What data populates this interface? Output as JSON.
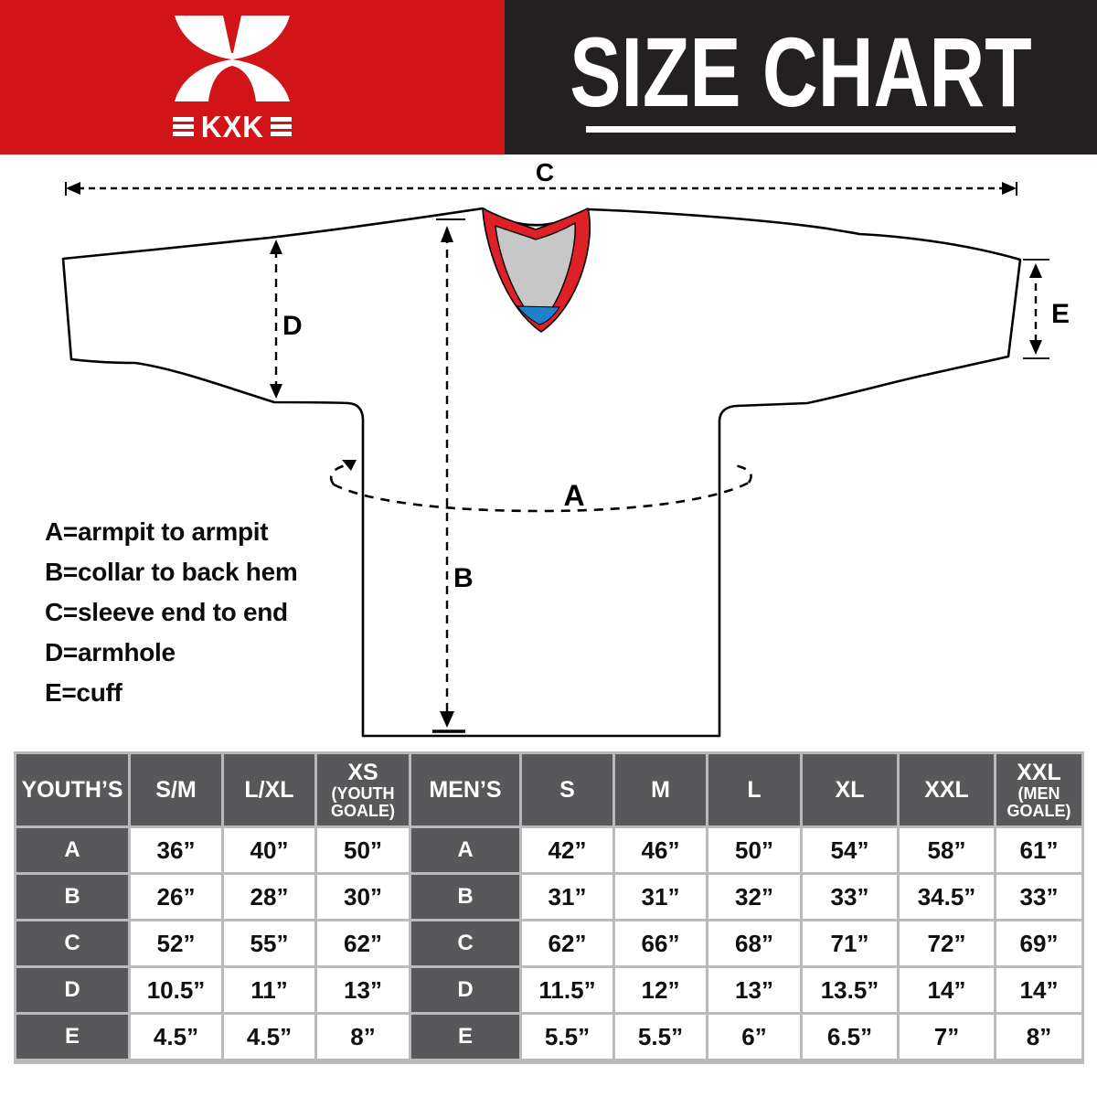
{
  "header": {
    "title": "SIZE CHART",
    "banner_red_color": "#d01418",
    "banner_black_color": "#242021"
  },
  "logo": {
    "text": "KXK",
    "emblem_icon": "kxk-butterfly-x-emblem",
    "color": "#ffffff"
  },
  "diagram": {
    "labels": {
      "A": "A",
      "B": "B",
      "C": "C",
      "D": "D",
      "E": "E"
    },
    "legend": [
      "A=armpit to armpit",
      "B=collar to back hem",
      "C=sleeve end to end",
      "D=armhole",
      "E=cuff"
    ],
    "colors": {
      "outline": "#000000",
      "collar_red": "#dd2127",
      "collar_gray": "#c7c7c7",
      "collar_blue": "#1e80c8"
    }
  },
  "size_table": {
    "grid_color": "#b9babc",
    "header_cell_color": "#58585a",
    "youth": {
      "label": "YOUTH’S",
      "columns": [
        {
          "main": "S/M",
          "sub": ""
        },
        {
          "main": "L/XL",
          "sub": ""
        },
        {
          "main": "XS",
          "sub": "(YOUTH GOALE)"
        }
      ]
    },
    "men": {
      "label": "MEN’S",
      "columns": [
        {
          "main": "S",
          "sub": ""
        },
        {
          "main": "M",
          "sub": ""
        },
        {
          "main": "L",
          "sub": ""
        },
        {
          "main": "XL",
          "sub": ""
        },
        {
          "main": "XXL",
          "sub": ""
        },
        {
          "main": "XXL",
          "sub": "(MEN GOALE)"
        }
      ]
    },
    "rows": [
      {
        "label": "A",
        "youth": [
          "36”",
          "40”",
          "50”"
        ],
        "men": [
          "42”",
          "46”",
          "50”",
          "54”",
          "58”",
          "61”"
        ]
      },
      {
        "label": "B",
        "youth": [
          "26”",
          "28”",
          "30”"
        ],
        "men": [
          "31”",
          "31”",
          "32”",
          "33”",
          "34.5”",
          "33”"
        ]
      },
      {
        "label": "C",
        "youth": [
          "52”",
          "55”",
          "62”"
        ],
        "men": [
          "62”",
          "66”",
          "68”",
          "71”",
          "72”",
          "69”"
        ]
      },
      {
        "label": "D",
        "youth": [
          "10.5”",
          "11”",
          "13”"
        ],
        "men": [
          "11.5”",
          "12”",
          "13”",
          "13.5”",
          "14”",
          "14”"
        ]
      },
      {
        "label": "E",
        "youth": [
          "4.5”",
          "4.5”",
          "8”"
        ],
        "men": [
          "5.5”",
          "5.5”",
          "6”",
          "6.5”",
          "7”",
          "8”"
        ]
      }
    ]
  }
}
